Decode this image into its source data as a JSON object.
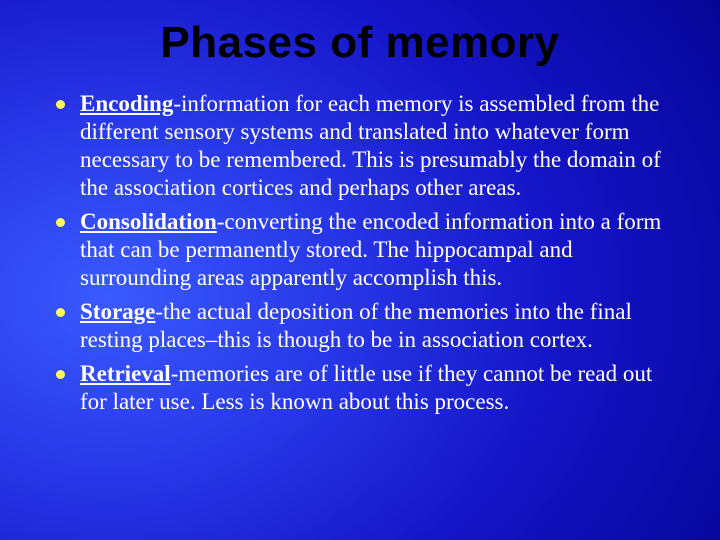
{
  "slide": {
    "title": "Phases of memory",
    "title_color": "#000000",
    "title_fontsize": 44,
    "body_fontsize": 23,
    "body_color": "#ffffff",
    "bullet_color": "#fff95a",
    "background_gradient": {
      "type": "radial",
      "center": "15% 55%",
      "stops": [
        "#3a5aff",
        "#2838e8",
        "#1515c8",
        "#0808a0",
        "#000060"
      ]
    },
    "bullets": [
      {
        "term": "Encoding",
        "rest": "-information for each memory is assembled from the different sensory systems and translated into whatever form necessary to be remembered. This is presumably the domain of the association cortices and perhaps other areas."
      },
      {
        "term": "Consolidation",
        "rest": "-converting the encoded information into a form that can be permanently stored. The hippocampal and surrounding areas apparently accomplish this."
      },
      {
        "term": "Storage",
        "rest": "-the actual deposition of the memories into the final resting places–this is though to be in association cortex."
      },
      {
        "term": "Retrieval",
        "rest": "-memories are of little use if they cannot be read out for later use. Less is known about this process."
      }
    ]
  }
}
